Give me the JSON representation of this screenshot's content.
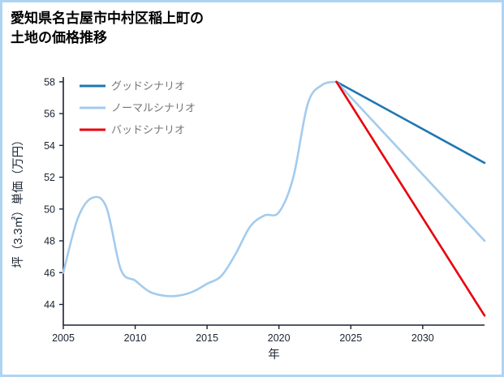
{
  "header": {
    "title_line1": "愛知県名古屋市中村区稲上町の",
    "title_line2": "土地の価格推移"
  },
  "colors": {
    "good": "#1f77b4",
    "normal": "#a3cbee",
    "bad": "#e8000b",
    "axis": "#1a2332",
    "legend_text": "#757575",
    "frame_border": "#aed4f4"
  },
  "chart_data": {
    "type": "line",
    "title": "愛知県名古屋市中村区稲上町の土地の価格推移",
    "xlabel": "年",
    "ylabel": "坪（3.3㎡）単価（万円）",
    "xlim": [
      2005,
      2034.3
    ],
    "ylim": [
      42.7,
      58.3
    ],
    "grid": false,
    "legend_position": "top-left-inside",
    "xticks": [
      "2005",
      "2010",
      "2015",
      "2020",
      "2025",
      "2030"
    ],
    "xtick_values": [
      2005,
      2010,
      2015,
      2020,
      2025,
      2030
    ],
    "yticks": [
      "44",
      "46",
      "48",
      "50",
      "52",
      "54",
      "56",
      "58"
    ],
    "ytick_values": [
      44,
      46,
      48,
      50,
      52,
      54,
      56,
      58
    ],
    "legend": [
      {
        "label": "グッドシナリオ",
        "color": "#1f77b4"
      },
      {
        "label": "ノーマルシナリオ",
        "color": "#a3cbee"
      },
      {
        "label": "バッドシナリオ",
        "color": "#e8000b"
      }
    ],
    "series": [
      {
        "name": "history-normal",
        "color": "#a3cbee",
        "width": 2.6,
        "smooth": true,
        "x": [
          2005,
          2006,
          2007,
          2008,
          2009,
          2010,
          2011,
          2012,
          2013,
          2014,
          2015,
          2016,
          2017,
          2018,
          2019,
          2020,
          2021,
          2022,
          2023,
          2024
        ],
        "y": [
          46.0,
          49.4,
          50.7,
          50.1,
          46.2,
          45.5,
          44.8,
          44.55,
          44.55,
          44.8,
          45.3,
          45.8,
          47.2,
          48.9,
          49.6,
          49.8,
          52.0,
          56.6,
          57.8,
          58.0
        ]
      },
      {
        "name": "good-scenario",
        "color": "#1f77b4",
        "width": 2.6,
        "smooth": false,
        "x": [
          2024,
          2034.3
        ],
        "y": [
          58.0,
          52.9
        ]
      },
      {
        "name": "normal-scenario",
        "color": "#a3cbee",
        "width": 2.6,
        "smooth": false,
        "x": [
          2024,
          2034.3
        ],
        "y": [
          58.0,
          48.0
        ]
      },
      {
        "name": "bad-scenario",
        "color": "#e8000b",
        "width": 2.6,
        "smooth": false,
        "x": [
          2024,
          2034.3
        ],
        "y": [
          58.0,
          43.3
        ]
      }
    ]
  }
}
